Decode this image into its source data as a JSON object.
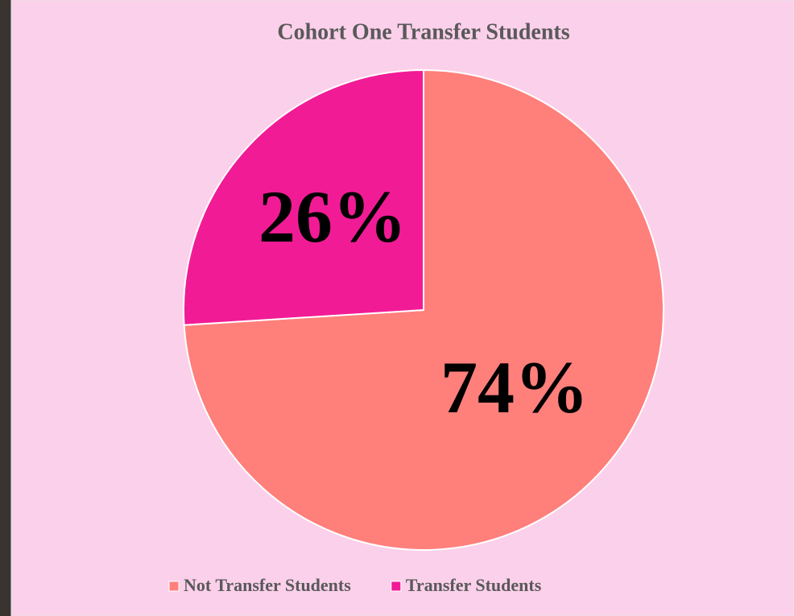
{
  "chart_data": {
    "type": "pie",
    "title": "Cohort One Transfer Students",
    "categories": [
      "Not Transfer Students",
      "Transfer Students"
    ],
    "values": [
      74,
      26
    ],
    "value_labels": [
      "74%",
      "26%"
    ],
    "colors": [
      "#ff7f7b",
      "#f21b96"
    ],
    "legend": "bottom"
  }
}
